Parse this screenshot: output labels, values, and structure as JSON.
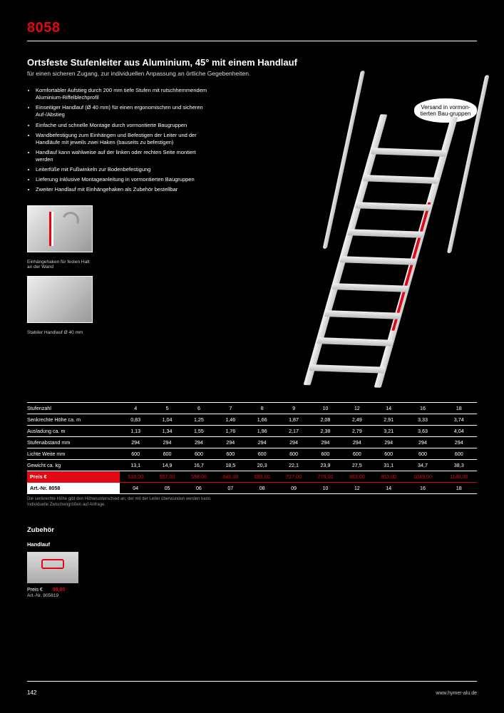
{
  "header": {
    "product_number": "8058",
    "title": "Ortsfeste Stufenleiter aus Aluminium, 45° mit einem Handlauf",
    "subtitle": "für einen sicheren Zugang, zur individuellen Anpassung an örtliche Gegebenheiten."
  },
  "bullets": [
    "Komfortabler Aufstieg durch 200 mm tiefe Stufen mit rutschhemmendem Aluminium-Riffelblechprofil",
    "Einseitiger Handlauf (Ø 40 mm) für einen ergonomischen und sicheren Auf-/Abstieg",
    "Einfache und schnelle Montage durch vormontierte Baugruppen",
    "Wandbefestigung zum Einhängen und Befestigen der Leiter und der Handläufe mit jeweils zwei Haken (bauseits zu befestigen)",
    "Handlauf kann wahlweise auf der linken oder rechten Seite montiert werden",
    "Leiterfüße mit Fußwinkeln zur Bodenbefestigung",
    "Lieferung inklusive Montageanleitung in vormontierten Baugruppen",
    "Zweiter Handlauf mit Einhängehaken als Zubehör bestellbar"
  ],
  "image_captions": {
    "hook": "Einhängehaken für festen Halt an der Wand",
    "handrail": "Stabiler Handlauf Ø 40 mm"
  },
  "callout": "Versand in vormon-tierten Bau-gruppen",
  "table": {
    "rows": [
      {
        "label": "Stufenzahl",
        "values": [
          "4",
          "5",
          "6",
          "7",
          "8",
          "9",
          "10",
          "12",
          "14",
          "16",
          "18"
        ]
      },
      {
        "label": "Senkrechte Höhe ca. m",
        "values": [
          "0,83",
          "1,04",
          "1,25",
          "1,46",
          "1,66",
          "1,87",
          "2,08",
          "2,49",
          "2,91",
          "3,33",
          "3,74"
        ]
      },
      {
        "label": "Ausladung ca. m",
        "values": [
          "1,13",
          "1,34",
          "1,55",
          "1,76",
          "1,96",
          "2,17",
          "2,38",
          "2,79",
          "3,21",
          "3,63",
          "4,04"
        ]
      },
      {
        "label": "Stufenabstand mm",
        "values": [
          "294",
          "294",
          "294",
          "294",
          "294",
          "294",
          "294",
          "294",
          "294",
          "294",
          "294"
        ]
      },
      {
        "label": "Lichte Weite mm",
        "values": [
          "600",
          "600",
          "600",
          "600",
          "600",
          "600",
          "600",
          "600",
          "600",
          "600",
          "600"
        ]
      },
      {
        "label": "Gewicht ca. kg",
        "values": [
          "13,1",
          "14,9",
          "16,7",
          "18,5",
          "20,3",
          "22,1",
          "23,9",
          "27,5",
          "31,1",
          "34,7",
          "38,3"
        ]
      }
    ],
    "price_row": {
      "label": "Preis €",
      "values": [
        "516,00",
        "557,00",
        "598,00",
        "646,00",
        "693,00",
        "727,00",
        "776,00",
        "863,00",
        "953,00",
        "1049,00",
        "1140,00"
      ]
    },
    "art_row": {
      "label": "Art.-Nr. 8058",
      "values": [
        "04",
        "05",
        "06",
        "07",
        "08",
        "09",
        "10",
        "12",
        "14",
        "16",
        "18"
      ]
    }
  },
  "footnotes": [
    "Die senkrechte Höhe gibt den Höhenunterschied an, der mit der Leiter überwunden werden kann.",
    "Individuelle Zwischengrößen auf Anfrage."
  ],
  "accessory": {
    "heading": "Zubehör",
    "name": "Handlauf",
    "price_label": "Preis €",
    "price": "99,00",
    "art_label": "Art.-Nr.",
    "art": "805819"
  },
  "footer": {
    "page": "142",
    "url": "www.hymer-alu.de"
  },
  "colors": {
    "accent": "#e30613",
    "background": "#000000",
    "text": "#ffffff"
  }
}
